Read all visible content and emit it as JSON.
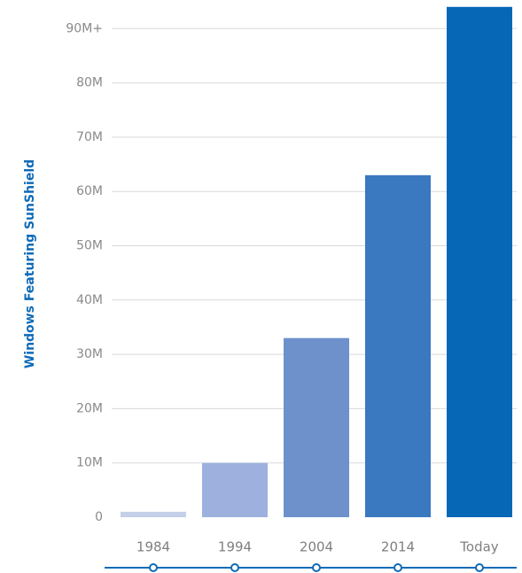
{
  "chart_data": {
    "type": "bar",
    "categories": [
      "1984",
      "1994",
      "2004",
      "2014",
      "Today"
    ],
    "values": [
      1,
      10,
      33,
      63,
      94
    ],
    "ylabel": "Windows Featuring SunShield",
    "xlabel": "",
    "ylim": [
      0,
      94
    ],
    "y_ticks": [
      0,
      10,
      20,
      30,
      40,
      50,
      60,
      70,
      80,
      90
    ],
    "y_tick_labels": [
      "0",
      "10M",
      "20M",
      "30M",
      "40M",
      "50M",
      "60M",
      "70M",
      "80M",
      "90M+"
    ],
    "grid": true,
    "bar_colors": [
      "#c4cfe8",
      "#9eb1de",
      "#6e91cc",
      "#3a78c0",
      "#0667b6"
    ],
    "accent_color": "#0e6bb8",
    "timeline_markers": true
  }
}
